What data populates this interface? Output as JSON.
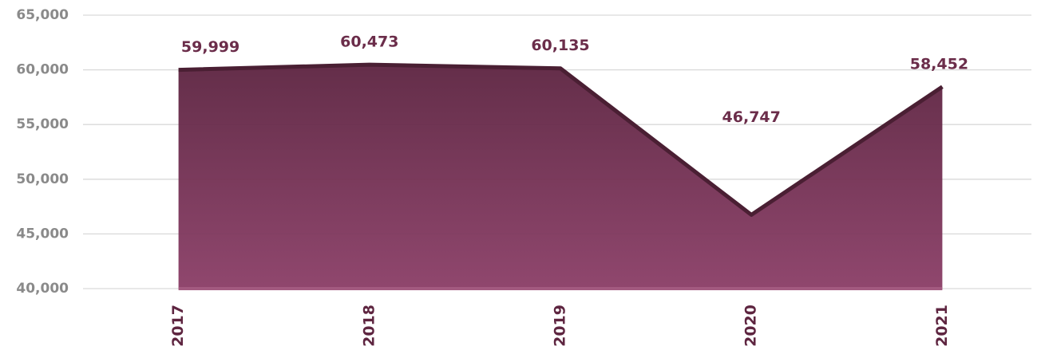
{
  "chart_data": {
    "type": "area",
    "categories": [
      "2017",
      "2018",
      "2019",
      "2020",
      "2021"
    ],
    "values": [
      59999,
      60473,
      60135,
      46747,
      58452
    ],
    "value_labels": [
      "59,999",
      "60,473",
      "60,135",
      "46,747",
      "58,452"
    ],
    "color": "#7d3a5e",
    "ylim": [
      40000,
      65000
    ],
    "yticks": [
      {
        "value": 40000,
        "label": "40,000"
      },
      {
        "value": 45000,
        "label": "45,000"
      },
      {
        "value": 50000,
        "label": "50,000"
      },
      {
        "value": 55000,
        "label": "55,000"
      },
      {
        "value": 60000,
        "label": "60,000"
      },
      {
        "value": 65000,
        "label": "65,000"
      }
    ],
    "grid": true
  }
}
